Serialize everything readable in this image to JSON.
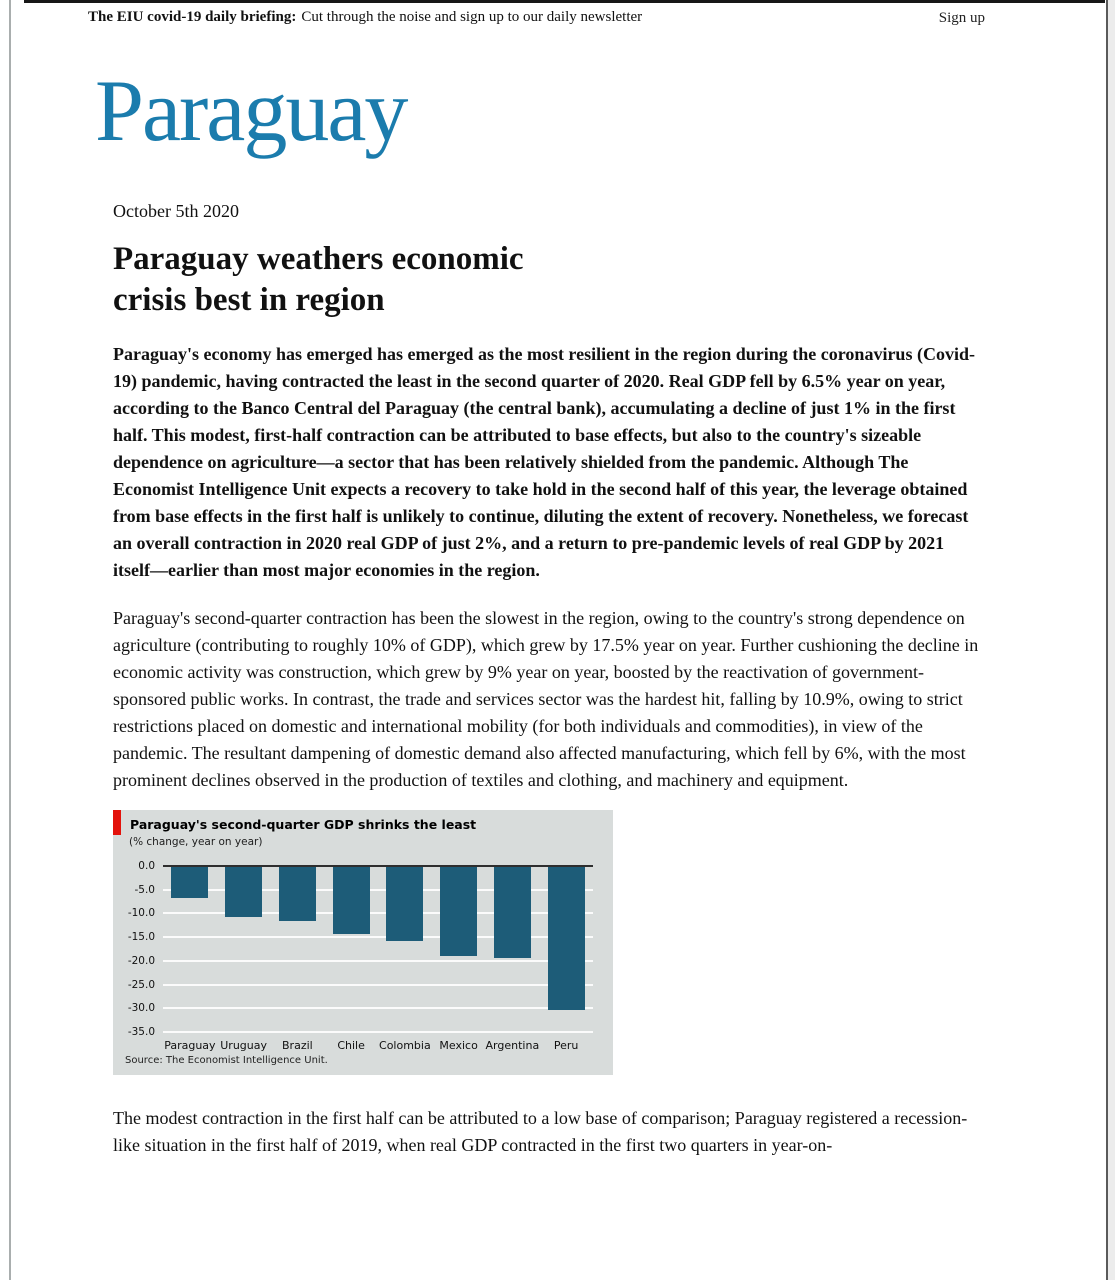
{
  "top_bar": {
    "brand": "The EIU covid-19 daily briefing:",
    "tagline": "Cut through the noise and sign up to our daily newsletter",
    "signup_label": "Sign up"
  },
  "article": {
    "title": "Paraguay",
    "date": "October 5th 2020",
    "headline_lines": [
      "Paraguay weathers economic",
      "crisis best in region"
    ],
    "lead_paragraph": "Paraguay's economy has emerged has emerged as the most resilient in the region during the coronavirus (Covid-19) pandemic, having contracted the least in the second quarter of 2020. Real GDP fell by 6.5% year on year, according to the Banco Central del Paraguay (the central bank), accumulating a decline of just 1% in the first half. This modest, first-half contraction can be attributed to base effects, but also to the country's sizeable dependence on agriculture—a sector that has been relatively shielded from the pandemic. Although The Economist Intelligence Unit expects a recovery to take hold in the second half of this year, the leverage obtained from base effects in the first half is unlikely to continue, diluting the extent of recovery. Nonetheless, we forecast an overall contraction in 2020 real GDP of just 2%, and a return to pre-pandemic levels of real GDP by 2021 itself—earlier than most major economies in the region.",
    "body_paragraph": "Paraguay's second-quarter contraction has been the slowest in the region, owing to the country's strong dependence on agriculture (contributing to roughly 10% of GDP), which grew by 17.5% year on year. Further cushioning the decline in economic activity was construction, which grew by 9% year on year, boosted by the reactivation of government-sponsored public works. In contrast, the trade and services sector was the hardest hit, falling by 10.9%, owing to strict restrictions placed on domestic and international mobility (for both individuals and commodities), in view of the pandemic. The resultant dampening of domestic demand also affected manufacturing, which fell by 6%, with the most prominent declines observed in the production of textiles and clothing, and machinery and equipment.",
    "closing_paragraph": "The modest contraction in the first half can be attributed to a low base of comparison; Paraguay registered a recession-like situation in the first half of 2019, when real GDP contracted in the first two quarters in year-on-"
  },
  "colors": {
    "title_blue": "#1b7cad",
    "accent_red": "#e3120b",
    "bar_teal": "#1d5c78",
    "chart_bg": "#d8dcdb"
  },
  "chart_data": {
    "type": "bar",
    "title": "Paraguay's second-quarter GDP shrinks the least",
    "subtitle": "(% change, year on year)",
    "categories": [
      "Paraguay",
      "Uruguay",
      "Brazil",
      "Chile",
      "Colombia",
      "Mexico",
      "Argentina",
      "Peru"
    ],
    "values": [
      -6.5,
      -10.6,
      -11.4,
      -14.1,
      -15.7,
      -18.7,
      -19.1,
      -30.2
    ],
    "xlabel": "",
    "ylabel": "",
    "ylim": [
      -35,
      0
    ],
    "ytick_labels": [
      "0.0",
      "-5.0",
      "-10.0",
      "-15.0",
      "-20.0",
      "-25.0",
      "-30.0",
      "-35.0"
    ],
    "grid": true,
    "legend_position": "none",
    "source": "Source: The Economist Intelligence Unit.",
    "bar_color": "#1d5c78",
    "plot_bg": "#d8dcdb"
  }
}
